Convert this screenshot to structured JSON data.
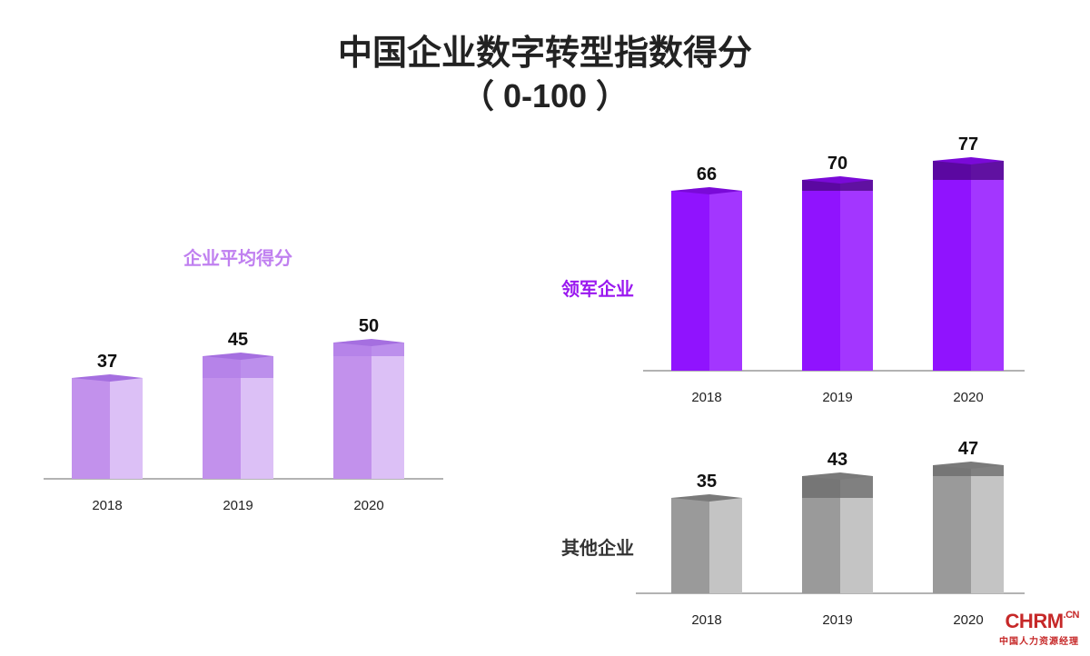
{
  "title_line1": "中国企业数字转型指数得分",
  "title_line2": "（ 0-100 ）",
  "brand": {
    "main": "CHRM",
    "suffix": ".CN",
    "sub": "中国人力资源经理"
  },
  "chart_data": [
    {
      "type": "bar",
      "series_label": "企业平均得分",
      "categories": [
        "2018",
        "2019",
        "2020"
      ],
      "values": [
        37,
        45,
        50
      ],
      "ylim": [
        0,
        100
      ],
      "colors": {
        "front": "#c291ec",
        "side": "#dcc0f6",
        "top": "#a56fe0",
        "increment": "#b27fe8",
        "label": "#c080f0"
      }
    },
    {
      "type": "bar",
      "series_label": "领军企业",
      "categories": [
        "2018",
        "2019",
        "2020"
      ],
      "values": [
        66,
        70,
        77
      ],
      "ylim": [
        0,
        100
      ],
      "colors": {
        "front": "#9013fe",
        "side": "#a336ff",
        "top": "#7a0ad8",
        "increment": "#4a0582",
        "label": "#9a18f0"
      }
    },
    {
      "type": "bar",
      "series_label": "其他企业",
      "categories": [
        "2018",
        "2019",
        "2020"
      ],
      "values": [
        35,
        43,
        47
      ],
      "ylim": [
        0,
        100
      ],
      "colors": {
        "front": "#9a9a9a",
        "side": "#c4c4c4",
        "top": "#7a7a7a",
        "increment": "#6a6a6a",
        "label": "#333333"
      }
    }
  ]
}
